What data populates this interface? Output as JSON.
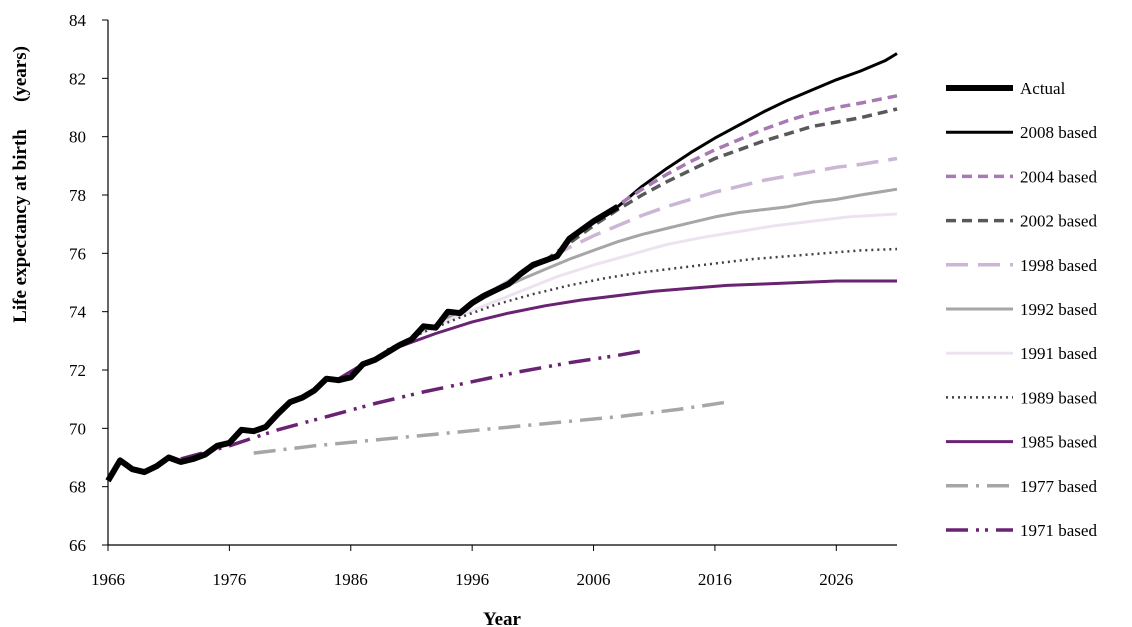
{
  "chart_data": {
    "type": "line",
    "title": "",
    "xlabel": "Year",
    "ylabel": "Life expectancy at birth",
    "ylabel_units": "(years)",
    "xlim": [
      1966,
      2031
    ],
    "ylim": [
      66,
      84
    ],
    "x_ticks": [
      1966,
      1976,
      1986,
      1996,
      2006,
      2016,
      2026
    ],
    "y_ticks": [
      66,
      68,
      70,
      72,
      74,
      76,
      78,
      80,
      82,
      84
    ],
    "grid": false,
    "legend_position": "right",
    "series": [
      {
        "name": "Actual",
        "color": "#000000",
        "style": "thick-solid",
        "points": [
          [
            1966,
            68.2
          ],
          [
            1967,
            68.9
          ],
          [
            1968,
            68.6
          ],
          [
            1969,
            68.5
          ],
          [
            1970,
            68.7
          ],
          [
            1971,
            69.0
          ],
          [
            1972,
            68.85
          ],
          [
            1973,
            68.95
          ],
          [
            1974,
            69.1
          ],
          [
            1975,
            69.4
          ],
          [
            1976,
            69.5
          ],
          [
            1977,
            69.95
          ],
          [
            1978,
            69.9
          ],
          [
            1979,
            70.05
          ],
          [
            1980,
            70.5
          ],
          [
            1981,
            70.9
          ],
          [
            1982,
            71.05
          ],
          [
            1983,
            71.3
          ],
          [
            1984,
            71.7
          ],
          [
            1985,
            71.65
          ],
          [
            1986,
            71.75
          ],
          [
            1987,
            72.2
          ],
          [
            1988,
            72.35
          ],
          [
            1989,
            72.6
          ],
          [
            1990,
            72.85
          ],
          [
            1991,
            73.05
          ],
          [
            1992,
            73.5
          ],
          [
            1993,
            73.45
          ],
          [
            1994,
            74.0
          ],
          [
            1995,
            73.95
          ],
          [
            1996,
            74.3
          ],
          [
            1997,
            74.55
          ],
          [
            1998,
            74.75
          ],
          [
            1999,
            74.95
          ],
          [
            2000,
            75.3
          ],
          [
            2001,
            75.6
          ],
          [
            2002,
            75.75
          ],
          [
            2003,
            75.9
          ],
          [
            2004,
            76.5
          ],
          [
            2005,
            76.8
          ],
          [
            2006,
            77.1
          ],
          [
            2007,
            77.35
          ],
          [
            2008,
            77.6
          ]
        ]
      },
      {
        "name": "2008 based",
        "color": "#000000",
        "style": "solid",
        "points": [
          [
            2008,
            77.6
          ],
          [
            2010,
            78.3
          ],
          [
            2012,
            78.9
          ],
          [
            2014,
            79.45
          ],
          [
            2016,
            79.95
          ],
          [
            2018,
            80.4
          ],
          [
            2020,
            80.85
          ],
          [
            2022,
            81.25
          ],
          [
            2024,
            81.6
          ],
          [
            2026,
            81.95
          ],
          [
            2028,
            82.25
          ],
          [
            2030,
            82.6
          ],
          [
            2031,
            82.85
          ]
        ]
      },
      {
        "name": "2004 based",
        "color": "#a87ab4",
        "style": "dash",
        "points": [
          [
            2004,
            76.5
          ],
          [
            2006,
            77.1
          ],
          [
            2008,
            77.65
          ],
          [
            2010,
            78.2
          ],
          [
            2012,
            78.7
          ],
          [
            2014,
            79.15
          ],
          [
            2016,
            79.55
          ],
          [
            2018,
            79.9
          ],
          [
            2020,
            80.25
          ],
          [
            2022,
            80.55
          ],
          [
            2024,
            80.8
          ],
          [
            2026,
            81.0
          ],
          [
            2028,
            81.15
          ],
          [
            2031,
            81.4
          ]
        ]
      },
      {
        "name": "2002 based",
        "color": "#595959",
        "style": "dash",
        "points": [
          [
            2002,
            75.75
          ],
          [
            2004,
            76.35
          ],
          [
            2006,
            76.95
          ],
          [
            2008,
            77.5
          ],
          [
            2010,
            78.0
          ],
          [
            2012,
            78.45
          ],
          [
            2014,
            78.85
          ],
          [
            2016,
            79.25
          ],
          [
            2018,
            79.55
          ],
          [
            2020,
            79.85
          ],
          [
            2022,
            80.1
          ],
          [
            2024,
            80.35
          ],
          [
            2026,
            80.5
          ],
          [
            2028,
            80.65
          ],
          [
            2031,
            80.95
          ]
        ]
      },
      {
        "name": "1998 based",
        "color": "#cbb6d6",
        "style": "long-dash",
        "points": [
          [
            1998,
            74.8
          ],
          [
            2000,
            75.3
          ],
          [
            2002,
            75.75
          ],
          [
            2004,
            76.2
          ],
          [
            2006,
            76.6
          ],
          [
            2008,
            76.95
          ],
          [
            2010,
            77.3
          ],
          [
            2012,
            77.6
          ],
          [
            2014,
            77.85
          ],
          [
            2016,
            78.1
          ],
          [
            2018,
            78.3
          ],
          [
            2020,
            78.5
          ],
          [
            2022,
            78.65
          ],
          [
            2024,
            78.8
          ],
          [
            2026,
            78.95
          ],
          [
            2028,
            79.05
          ],
          [
            2031,
            79.25
          ]
        ]
      },
      {
        "name": "1992 based",
        "color": "#a6a6a6",
        "style": "solid",
        "points": [
          [
            1992,
            73.3
          ],
          [
            1994,
            73.8
          ],
          [
            1996,
            74.25
          ],
          [
            1998,
            74.7
          ],
          [
            2000,
            75.1
          ],
          [
            2002,
            75.45
          ],
          [
            2004,
            75.8
          ],
          [
            2006,
            76.1
          ],
          [
            2008,
            76.4
          ],
          [
            2010,
            76.65
          ],
          [
            2012,
            76.85
          ],
          [
            2014,
            77.05
          ],
          [
            2016,
            77.25
          ],
          [
            2018,
            77.4
          ],
          [
            2020,
            77.5
          ],
          [
            2022,
            77.6
          ],
          [
            2024,
            77.75
          ],
          [
            2026,
            77.85
          ],
          [
            2028,
            78.0
          ],
          [
            2031,
            78.2
          ]
        ]
      },
      {
        "name": "1991 based",
        "color": "#ede3f0",
        "style": "solid",
        "points": [
          [
            1991,
            73.1
          ],
          [
            1994,
            73.7
          ],
          [
            1997,
            74.2
          ],
          [
            2000,
            74.7
          ],
          [
            2003,
            75.2
          ],
          [
            2006,
            75.6
          ],
          [
            2009,
            75.95
          ],
          [
            2012,
            76.3
          ],
          [
            2015,
            76.55
          ],
          [
            2018,
            76.75
          ],
          [
            2021,
            76.95
          ],
          [
            2024,
            77.1
          ],
          [
            2027,
            77.25
          ],
          [
            2031,
            77.35
          ]
        ]
      },
      {
        "name": "1989 based",
        "color": "#404040",
        "style": "dotted",
        "points": [
          [
            1989,
            72.7
          ],
          [
            1992,
            73.3
          ],
          [
            1995,
            73.8
          ],
          [
            1998,
            74.25
          ],
          [
            2001,
            74.6
          ],
          [
            2004,
            74.9
          ],
          [
            2007,
            75.15
          ],
          [
            2010,
            75.35
          ],
          [
            2013,
            75.5
          ],
          [
            2016,
            75.65
          ],
          [
            2019,
            75.8
          ],
          [
            2022,
            75.9
          ],
          [
            2025,
            76.0
          ],
          [
            2028,
            76.1
          ],
          [
            2031,
            76.15
          ]
        ]
      },
      {
        "name": "1985 based",
        "color": "#6a2272",
        "style": "solid",
        "points": [
          [
            1985,
            71.7
          ],
          [
            1987,
            72.2
          ],
          [
            1990,
            72.8
          ],
          [
            1993,
            73.25
          ],
          [
            1996,
            73.65
          ],
          [
            1999,
            73.95
          ],
          [
            2002,
            74.2
          ],
          [
            2005,
            74.4
          ],
          [
            2008,
            74.55
          ],
          [
            2011,
            74.7
          ],
          [
            2014,
            74.8
          ],
          [
            2017,
            74.9
          ],
          [
            2020,
            74.95
          ],
          [
            2023,
            75.0
          ],
          [
            2026,
            75.05
          ],
          [
            2031,
            75.05
          ]
        ]
      },
      {
        "name": "1977 based",
        "color": "#a6a6a6",
        "style": "dash-dot",
        "points": [
          [
            1978,
            69.15
          ],
          [
            1983,
            69.4
          ],
          [
            1988,
            69.6
          ],
          [
            1993,
            69.8
          ],
          [
            1998,
            70.0
          ],
          [
            2003,
            70.2
          ],
          [
            2008,
            70.4
          ],
          [
            2013,
            70.65
          ],
          [
            2017,
            70.9
          ]
        ]
      },
      {
        "name": "1971 based",
        "color": "#6a2272",
        "style": "dash-dot-dot",
        "points": [
          [
            1972,
            68.95
          ],
          [
            1976,
            69.4
          ],
          [
            1980,
            69.95
          ],
          [
            1984,
            70.4
          ],
          [
            1988,
            70.85
          ],
          [
            1992,
            71.25
          ],
          [
            1996,
            71.6
          ],
          [
            2000,
            71.95
          ],
          [
            2004,
            72.25
          ],
          [
            2008,
            72.5
          ],
          [
            2010,
            72.65
          ]
        ]
      }
    ]
  }
}
